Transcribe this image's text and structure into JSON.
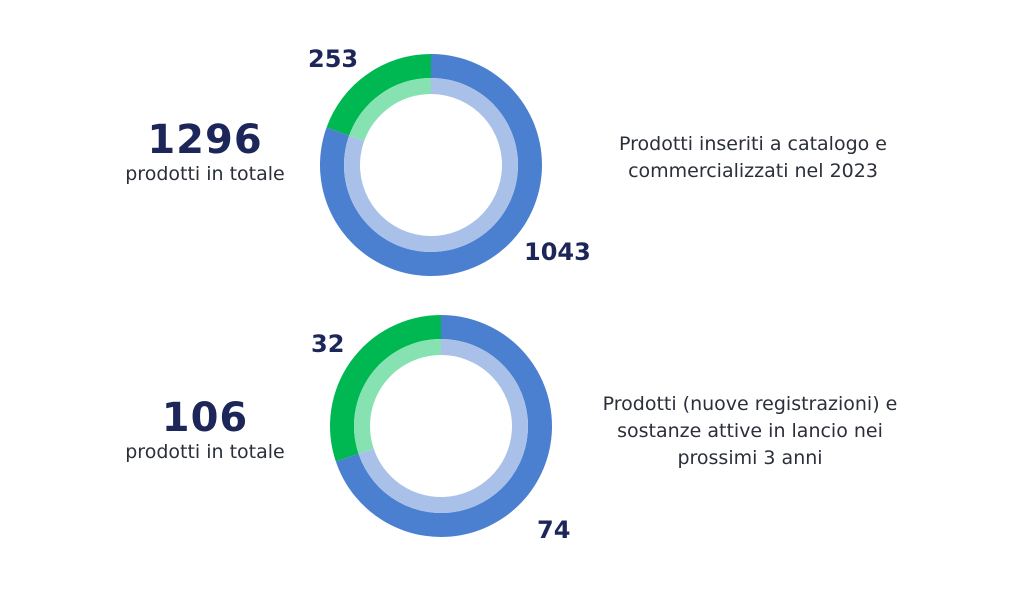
{
  "chart_data": [
    {
      "type": "pie",
      "style": "donut",
      "total": "1296",
      "total_label": "prodotti in totale",
      "description": "Prodotti inseriti a catalogo e commercializzati nel 2023",
      "slices": [
        {
          "value": 253,
          "label": "253",
          "color": "#00b852",
          "inner_color": "#86e2b1"
        },
        {
          "value": 1043,
          "label": "1043",
          "color": "#4b7fd0",
          "inner_color": "#a9c1e9"
        }
      ]
    },
    {
      "type": "pie",
      "style": "donut",
      "total": "106",
      "total_label": "prodotti in totale",
      "description": "Prodotti (nuove registrazioni) e sostanze attive in lancio nei prossimi 3 anni",
      "slices": [
        {
          "value": 32,
          "label": "32",
          "color": "#00b852",
          "inner_color": "#86e2b1"
        },
        {
          "value": 74,
          "label": "74",
          "color": "#4b7fd0",
          "inner_color": "#a9c1e9"
        }
      ]
    }
  ]
}
